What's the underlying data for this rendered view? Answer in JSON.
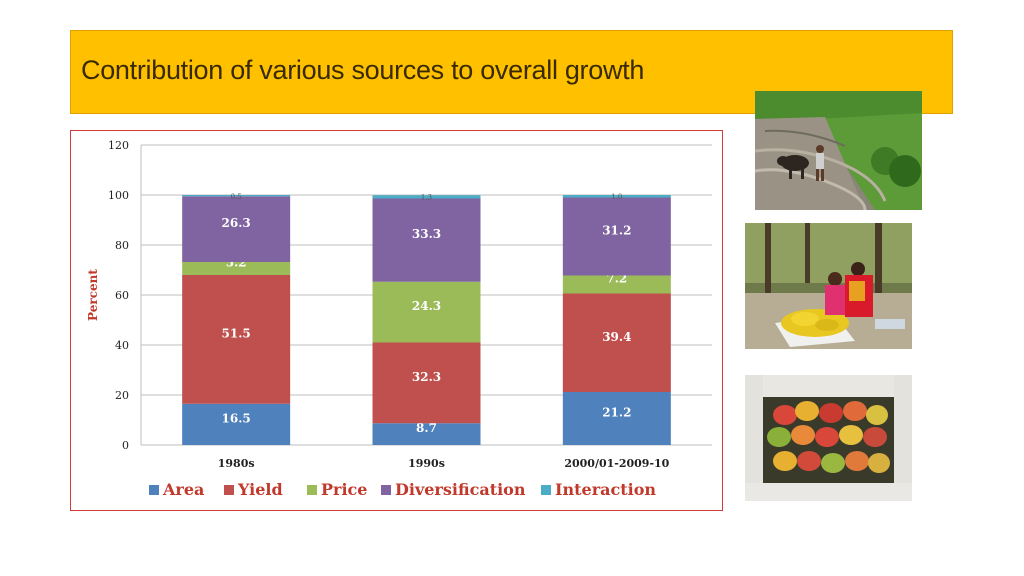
{
  "title": "Contribution of various sources to overall growth",
  "chart_data": {
    "type": "bar",
    "stacked": true,
    "categories": [
      "1980s",
      "1990s",
      "2000/01-2009-10"
    ],
    "series": [
      {
        "name": "Area",
        "color": "#4F81BD",
        "values": [
          16.5,
          8.7,
          21.2
        ],
        "labels": [
          "16.5",
          "8.7",
          "21.2"
        ]
      },
      {
        "name": "Yield",
        "color": "#C0504D",
        "values": [
          51.5,
          32.3,
          39.4
        ],
        "labels": [
          "51.5",
          "32.3",
          "39.4"
        ]
      },
      {
        "name": "Price",
        "color": "#9BBB59",
        "values": [
          5.2,
          24.3,
          7.2
        ],
        "labels": [
          "5.2",
          "24.3",
          "7.2"
        ]
      },
      {
        "name": "Diversification",
        "color": "#8064A2",
        "values": [
          26.3,
          33.3,
          31.2
        ],
        "labels": [
          "26.3",
          "33.3",
          "31.2"
        ]
      },
      {
        "name": "Interaction",
        "color": "#4BACC6",
        "values": [
          0.5,
          1.3,
          1.0
        ],
        "labels": [
          "0.5",
          "1.3",
          "1.0"
        ]
      }
    ],
    "ylabel": "Percent",
    "xlabel": "",
    "ylim": [
      0,
      120
    ],
    "yticks": [
      0,
      20,
      40,
      60,
      80,
      100,
      120
    ],
    "grid": true,
    "legend": "bottom"
  },
  "photos": {
    "field": "field-ploughing-photo",
    "vendors": "mango-vendors-photo",
    "mangoes": "mango-basket-photo"
  }
}
